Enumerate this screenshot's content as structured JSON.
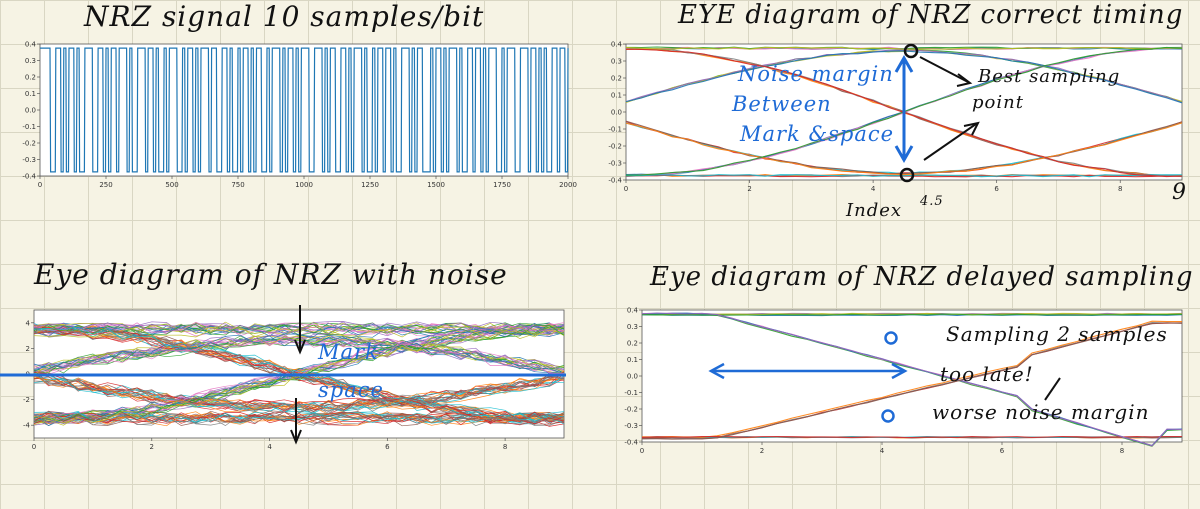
{
  "titles": {
    "tl": "NRZ signal 10 samples/bit",
    "tr": "EYE diagram of NRZ correct timing",
    "bl": "Eye diagram of NRZ with noise",
    "br": "Eye diagram of NRZ delayed sampling"
  },
  "annotations": {
    "noise_margin_1": "Noise margin",
    "noise_margin_2": "Between",
    "noise_margin_3": "Mark &space",
    "best_1": "Best sampling",
    "best_2": "point",
    "index": "Index",
    "index_val": "4.5",
    "nine": "9",
    "mark": "Mark",
    "space": "space",
    "late_1": "Sampling 2 samples",
    "late_2": "too late!",
    "late_3": "worse noise margin"
  },
  "colors": {
    "blue_ink": "#1f6bd6",
    "signal": "#1f77b4",
    "series": [
      "#1f77b4",
      "#ff7f0e",
      "#2ca02c",
      "#d62728",
      "#9467bd",
      "#8c564b",
      "#e377c2",
      "#7f7f7f",
      "#bcbd22",
      "#17becf"
    ]
  },
  "chart_data": [
    {
      "type": "line",
      "x_ticks": [
        0,
        250,
        500,
        750,
        1000,
        1250,
        1500,
        1750,
        2000
      ],
      "y_ticks": [
        "0.4",
        "0.3",
        "0.2",
        "0.1",
        "0.0",
        "-0.1",
        "-0.2",
        "-0.3",
        "-0.4"
      ],
      "xlim": [
        0,
        2000
      ],
      "ylim": [
        -0.4,
        0.4
      ],
      "samples_per_bit": 10,
      "levels": [
        0.375,
        -0.375
      ],
      "bits": "1111001101011010011100110101101110100111011010010111001011010111011001101001011010110010111010110101110011101011001101011101001011011010011101011000101101011101001101101011100101110011101101010011011010110111010011010110011101001011011000110101110110101001101101011001110110100101110101"
    },
    {
      "type": "line",
      "x_ticks": [
        0,
        2,
        4,
        6,
        8
      ],
      "y_ticks": [
        "0.4",
        "0.3",
        "0.2",
        "0.1",
        "0.0",
        "-0.1",
        "-0.2",
        "-0.3",
        "-0.4"
      ],
      "xlim": [
        0,
        9
      ],
      "ylim": [
        -0.4,
        0.4
      ],
      "high": 0.375,
      "low": -0.375,
      "peak": 0.36,
      "trough": -0.36,
      "ends": 0.06
    },
    {
      "type": "line",
      "x_ticks": [
        0,
        2,
        4,
        6,
        8
      ],
      "y_ticks": [
        "4",
        "2",
        "0",
        "-2",
        "-4"
      ],
      "xlim": [
        0,
        9
      ],
      "ylim": [
        -5,
        5
      ],
      "high": 3.5,
      "low": -3.5,
      "peak": 2.6,
      "trough": -2.6,
      "ends": 0.2
    },
    {
      "type": "line",
      "x_ticks": [
        0,
        2,
        4,
        6,
        8
      ],
      "y_ticks": [
        "0.4",
        "0.3",
        "0.2",
        "0.1",
        "0.0",
        "-0.1",
        "-0.2",
        "-0.3",
        "-0.4"
      ],
      "xlim": [
        0,
        9
      ],
      "ylim": [
        -0.4,
        0.4
      ],
      "high": 0.375,
      "low": -0.375,
      "cross_x": 6.5
    }
  ]
}
